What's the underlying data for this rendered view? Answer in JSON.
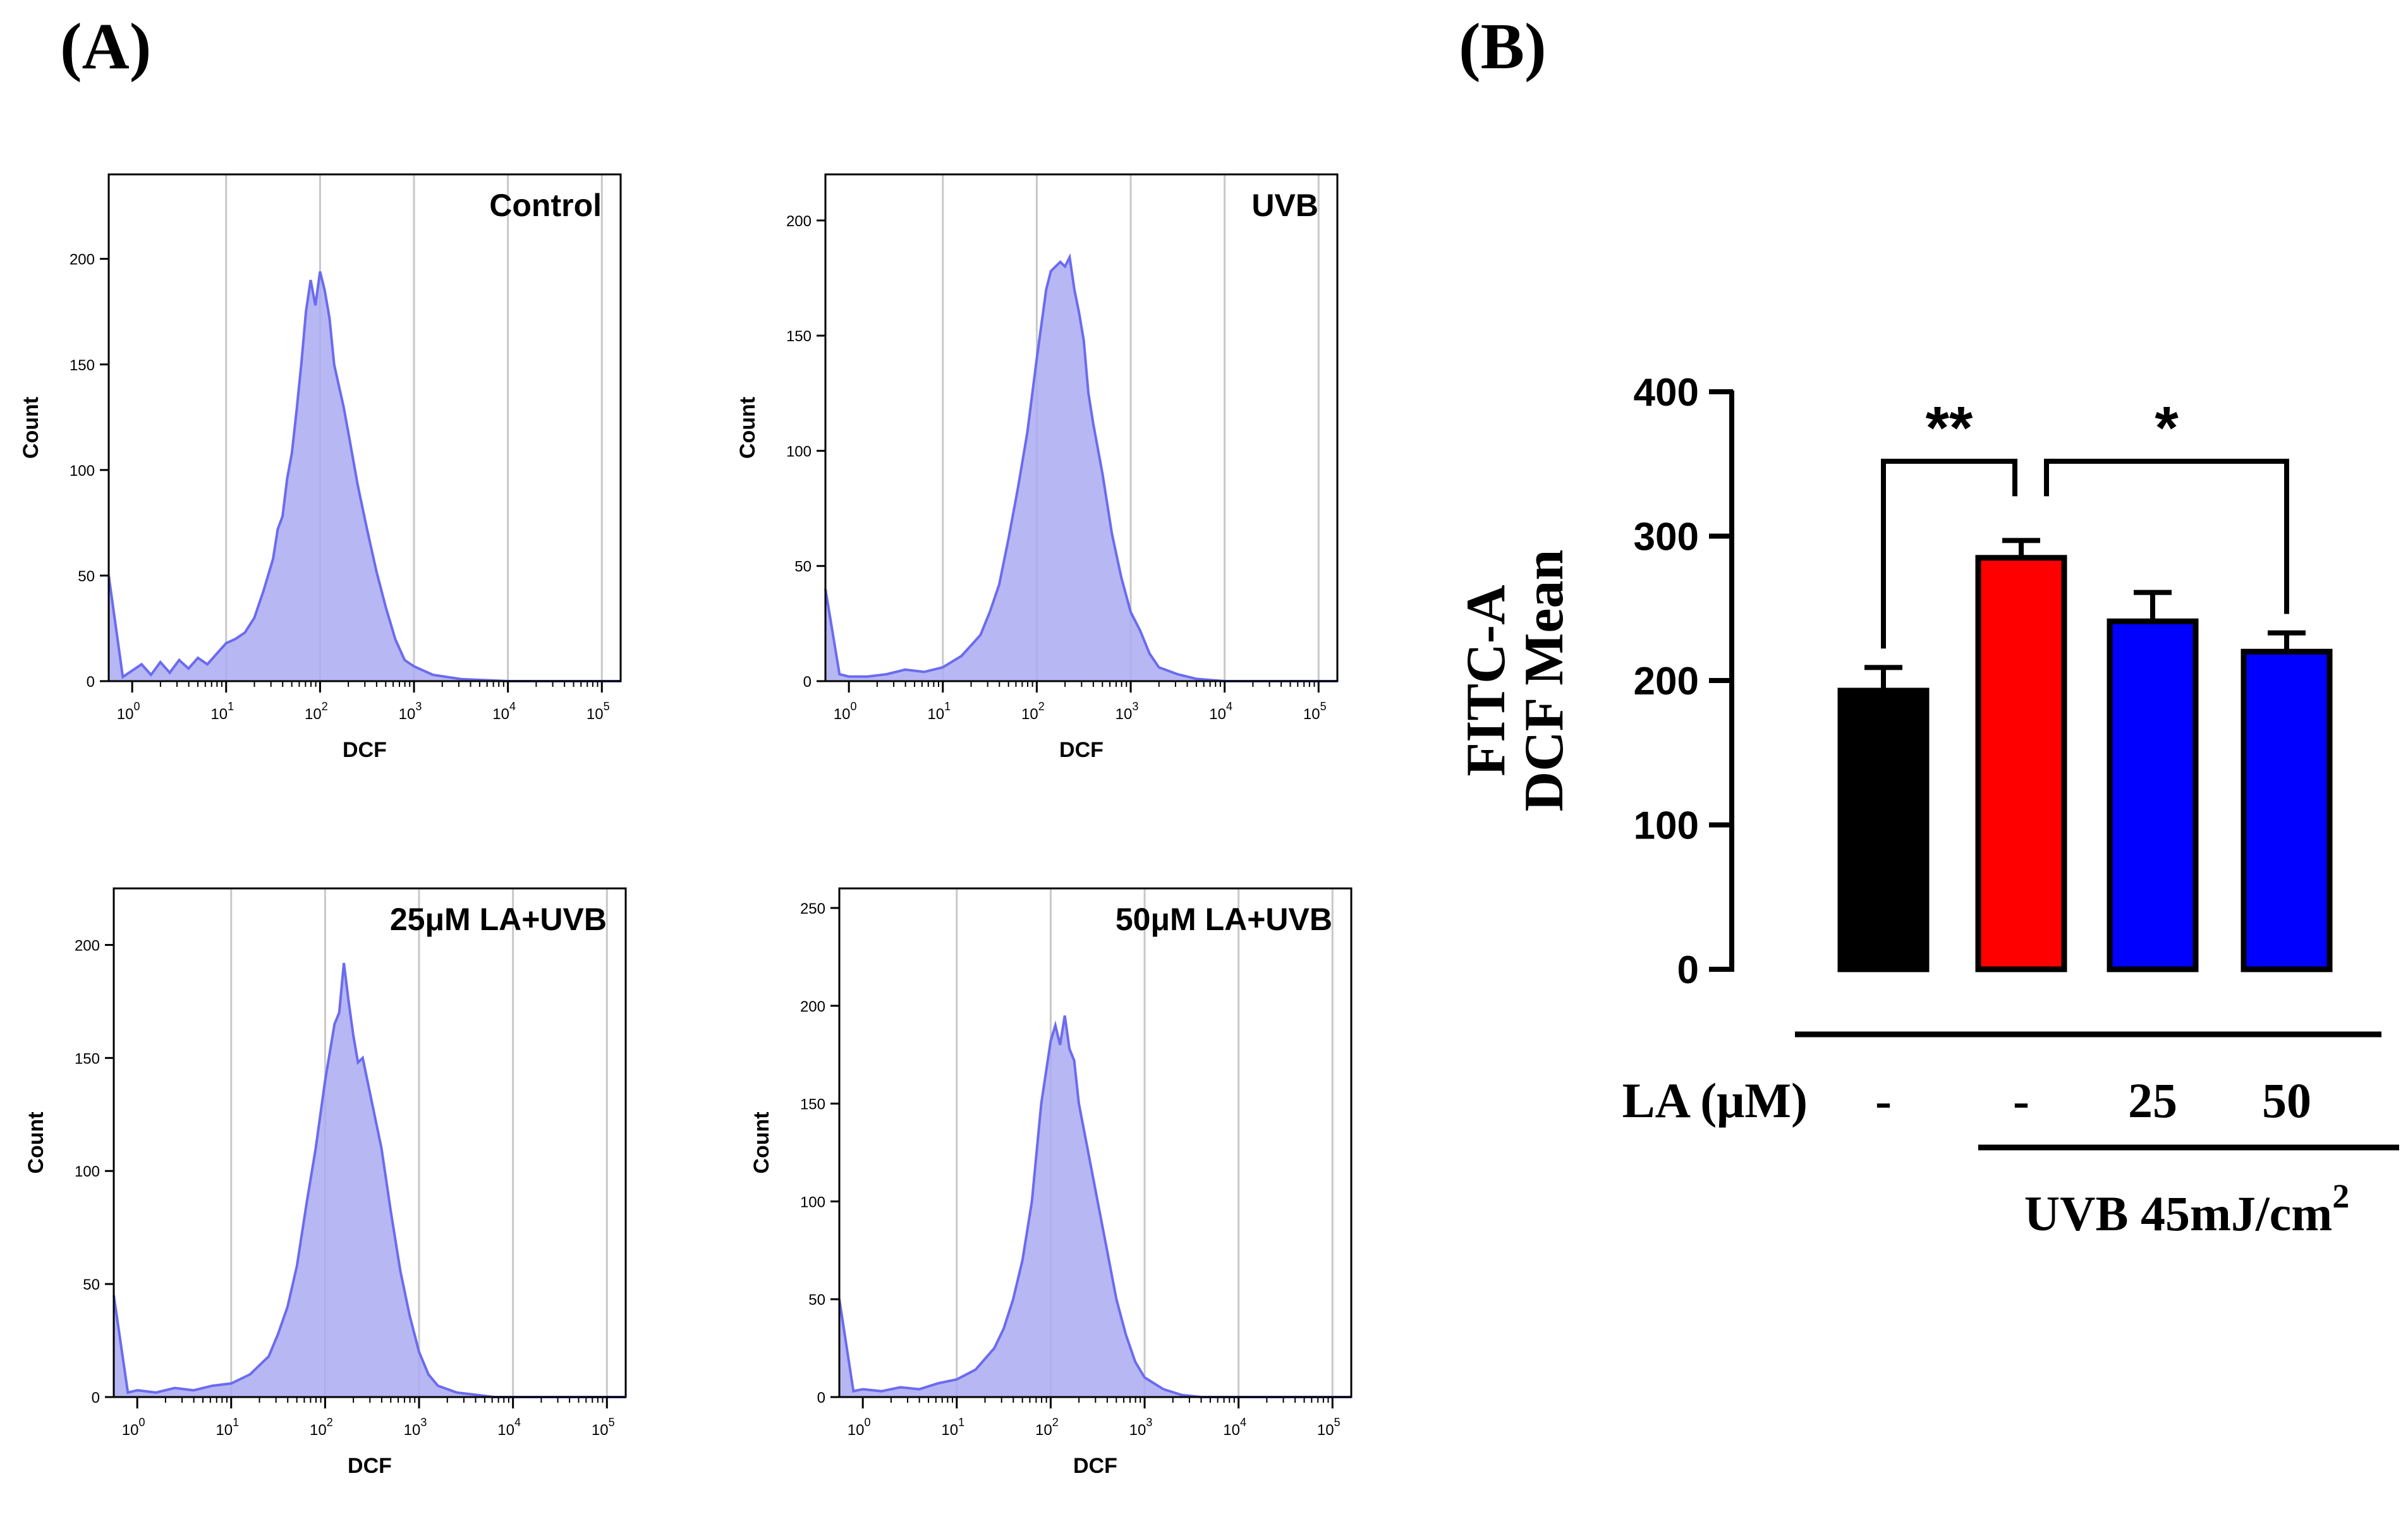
{
  "panel_labels": {
    "a": "(A)",
    "b": "(B)"
  },
  "chart_data": [
    {
      "type": "area",
      "title": "Control",
      "xlabel": "DCF",
      "ylabel": "Count",
      "xscale": "log",
      "xlim_log10": [
        -0.25,
        5.2
      ],
      "ylim": [
        0,
        240
      ],
      "yticks": [
        0,
        50,
        100,
        150,
        200
      ],
      "xtick_exponents": [
        0,
        1,
        2,
        3,
        4,
        5
      ],
      "grid_x_log10": [
        1,
        2,
        3,
        4,
        5
      ],
      "fill_color": "#aaaaf2",
      "line_color": "#6b6bf0",
      "x_log10": [
        -0.25,
        -0.1,
        0,
        0.1,
        0.2,
        0.3,
        0.4,
        0.5,
        0.6,
        0.7,
        0.8,
        0.9,
        1.0,
        1.1,
        1.2,
        1.3,
        1.4,
        1.5,
        1.55,
        1.6,
        1.65,
        1.7,
        1.75,
        1.8,
        1.85,
        1.9,
        1.95,
        2.0,
        2.05,
        2.1,
        2.15,
        2.2,
        2.25,
        2.3,
        2.4,
        2.5,
        2.6,
        2.7,
        2.8,
        2.9,
        3.0,
        3.2,
        3.5,
        4.0,
        4.5,
        5.0,
        5.2
      ],
      "counts": [
        50,
        2,
        5,
        8,
        3,
        9,
        4,
        10,
        6,
        11,
        8,
        13,
        18,
        20,
        23,
        30,
        43,
        58,
        72,
        78,
        96,
        108,
        128,
        150,
        175,
        190,
        178,
        194,
        185,
        172,
        150,
        140,
        130,
        118,
        93,
        72,
        52,
        35,
        20,
        10,
        7,
        3,
        1,
        0,
        0,
        0,
        0
      ]
    },
    {
      "type": "area",
      "title": "UVB",
      "xlabel": "DCF",
      "ylabel": "Count",
      "xscale": "log",
      "xlim_log10": [
        -0.25,
        5.2
      ],
      "ylim": [
        0,
        220
      ],
      "yticks": [
        0,
        50,
        100,
        150,
        200
      ],
      "xtick_exponents": [
        0,
        1,
        2,
        3,
        4,
        5
      ],
      "grid_x_log10": [
        1,
        2,
        3,
        4,
        5
      ],
      "fill_color": "#aaaaf2",
      "line_color": "#6b6bf0",
      "x_log10": [
        -0.25,
        -0.1,
        0,
        0.2,
        0.4,
        0.6,
        0.8,
        1.0,
        1.2,
        1.4,
        1.5,
        1.6,
        1.7,
        1.8,
        1.9,
        2.0,
        2.1,
        2.15,
        2.2,
        2.25,
        2.3,
        2.35,
        2.4,
        2.45,
        2.5,
        2.55,
        2.6,
        2.7,
        2.8,
        2.9,
        3.0,
        3.1,
        3.2,
        3.3,
        3.5,
        3.7,
        4.0,
        4.5,
        5.2
      ],
      "counts": [
        40,
        3,
        2,
        2,
        3,
        5,
        4,
        6,
        11,
        20,
        30,
        42,
        62,
        84,
        108,
        140,
        170,
        178,
        180,
        182,
        180,
        184,
        170,
        160,
        148,
        125,
        112,
        90,
        64,
        45,
        30,
        22,
        12,
        6,
        3,
        1,
        0,
        0,
        0
      ]
    },
    {
      "type": "area",
      "title": "25μM LA+UVB",
      "xlabel": "DCF",
      "ylabel": "Count",
      "xscale": "log",
      "xlim_log10": [
        -0.25,
        5.2
      ],
      "ylim": [
        0,
        225
      ],
      "yticks": [
        0,
        50,
        100,
        150,
        200
      ],
      "xtick_exponents": [
        0,
        1,
        2,
        3,
        4,
        5
      ],
      "grid_x_log10": [
        1,
        2,
        3,
        4,
        5
      ],
      "fill_color": "#aaaaf2",
      "line_color": "#6b6bf0",
      "x_log10": [
        -0.25,
        -0.1,
        0,
        0.2,
        0.4,
        0.6,
        0.8,
        1.0,
        1.2,
        1.4,
        1.5,
        1.6,
        1.7,
        1.8,
        1.9,
        2.0,
        2.1,
        2.15,
        2.2,
        2.25,
        2.3,
        2.35,
        2.4,
        2.5,
        2.6,
        2.7,
        2.8,
        2.9,
        3.0,
        3.1,
        3.2,
        3.4,
        3.6,
        3.8,
        4.2,
        5.2
      ],
      "counts": [
        45,
        2,
        3,
        2,
        4,
        3,
        5,
        6,
        10,
        18,
        28,
        40,
        58,
        85,
        110,
        140,
        165,
        170,
        192,
        175,
        160,
        148,
        150,
        130,
        110,
        82,
        56,
        36,
        20,
        10,
        5,
        2,
        1,
        0,
        0,
        0
      ]
    },
    {
      "type": "area",
      "title": "50μM LA+UVB",
      "xlabel": "DCF",
      "ylabel": "Count",
      "xscale": "log",
      "xlim_log10": [
        -0.25,
        5.2
      ],
      "ylim": [
        0,
        260
      ],
      "yticks": [
        0,
        50,
        100,
        150,
        200,
        250
      ],
      "xtick_exponents": [
        0,
        1,
        2,
        3,
        4,
        5
      ],
      "grid_x_log10": [
        1,
        2,
        3,
        4,
        5
      ],
      "fill_color": "#aaaaf2",
      "line_color": "#6b6bf0",
      "x_log10": [
        -0.25,
        -0.1,
        0,
        0.2,
        0.4,
        0.6,
        0.8,
        1.0,
        1.2,
        1.4,
        1.5,
        1.6,
        1.7,
        1.8,
        1.9,
        2.0,
        2.05,
        2.1,
        2.15,
        2.2,
        2.25,
        2.3,
        2.4,
        2.5,
        2.6,
        2.7,
        2.8,
        2.9,
        3.0,
        3.2,
        3.4,
        3.6,
        4.0,
        5.2
      ],
      "counts": [
        50,
        3,
        4,
        3,
        5,
        4,
        7,
        9,
        14,
        25,
        35,
        50,
        70,
        100,
        150,
        182,
        190,
        180,
        195,
        178,
        172,
        150,
        125,
        100,
        75,
        50,
        32,
        18,
        10,
        4,
        1,
        0,
        0,
        0
      ]
    },
    {
      "type": "bar",
      "ylabel_lines": [
        "FITC-A",
        "DCF Mean"
      ],
      "ylim": [
        0,
        400
      ],
      "yticks": [
        0,
        100,
        200,
        300,
        400
      ],
      "categories": [
        "-",
        "-",
        "25",
        "50"
      ],
      "values": [
        193,
        285,
        241,
        220
      ],
      "errors": [
        16,
        12,
        20,
        13
      ],
      "colors": [
        "#000000",
        "#ff0000",
        "#0000ff",
        "#0000ff"
      ],
      "group_label": "LA (μM)",
      "treatment_label": "UVB 45mJ/cm",
      "treatment_superscript": "2",
      "significance": [
        {
          "from": 0,
          "to": 1,
          "label": "**"
        },
        {
          "from": 1,
          "to": 3,
          "label": "*"
        }
      ]
    }
  ]
}
